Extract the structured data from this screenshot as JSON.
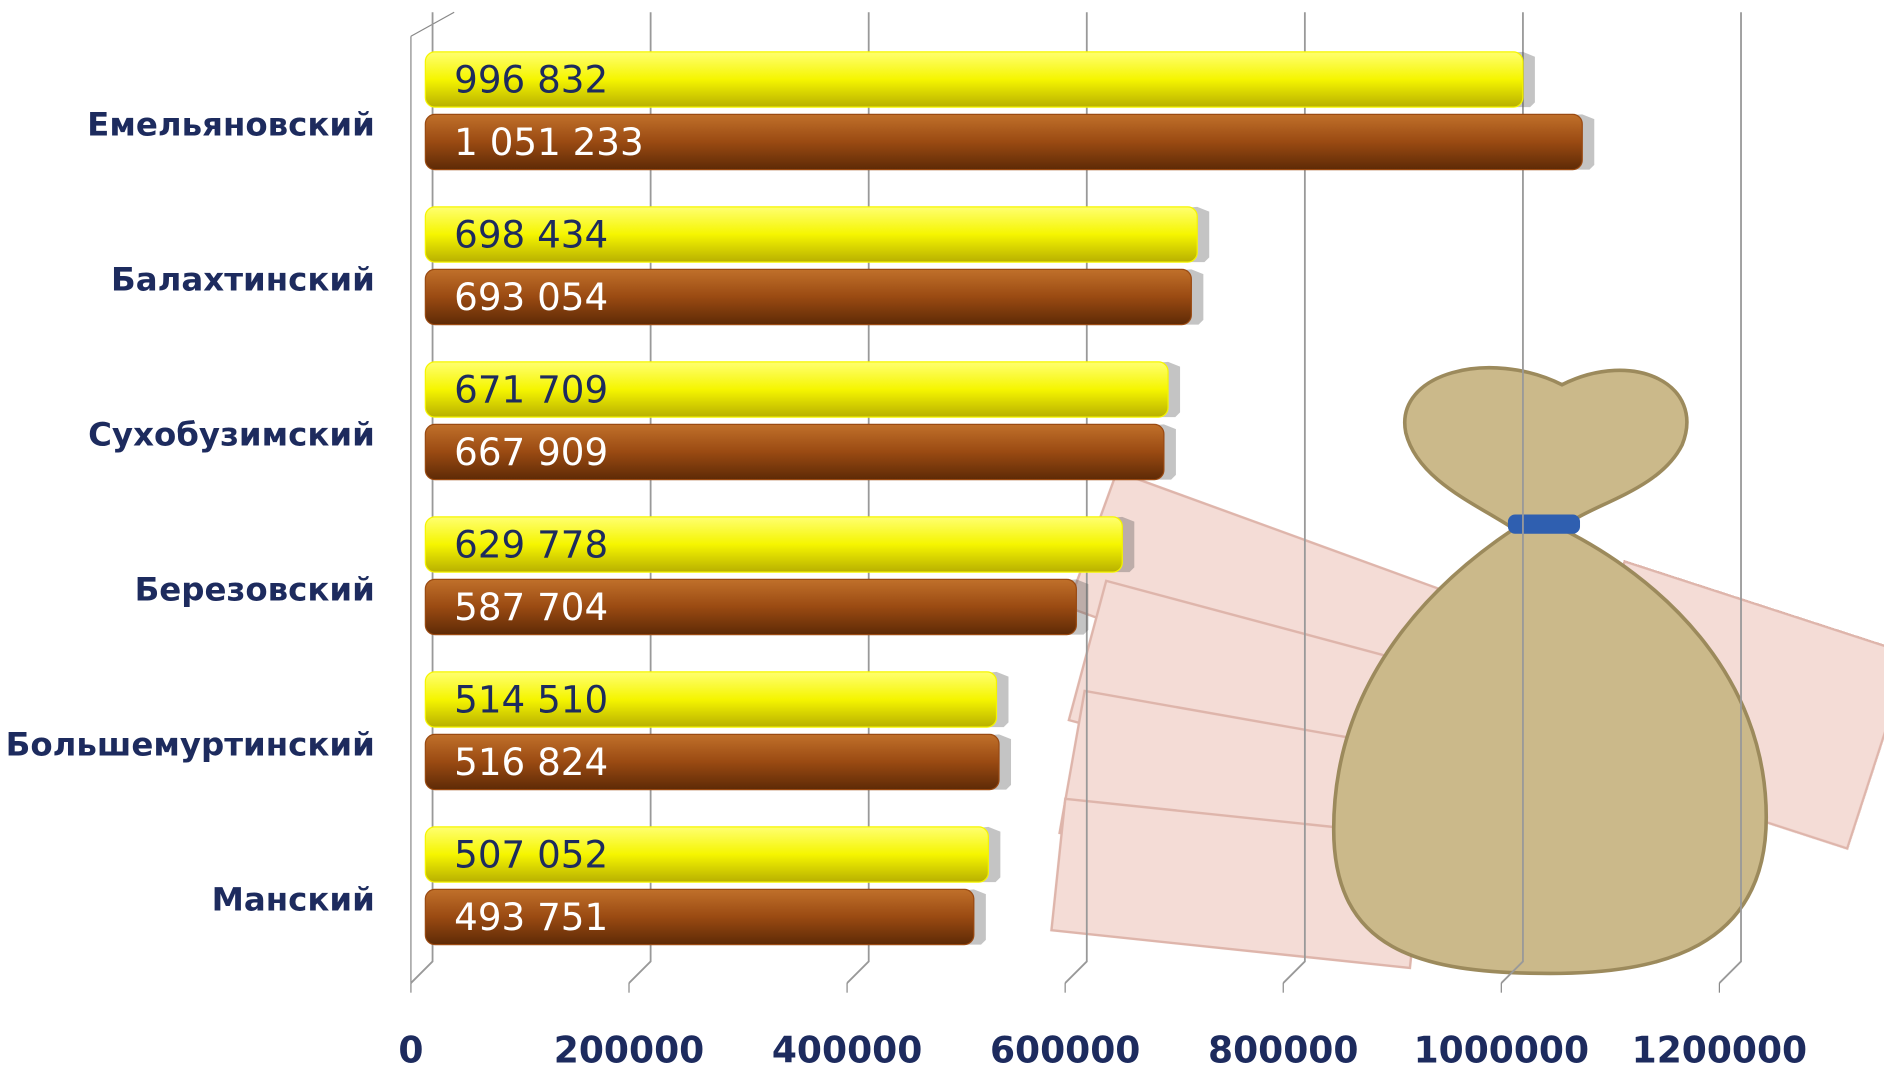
{
  "chart_data": {
    "type": "bar",
    "orientation": "horizontal",
    "categories": [
      "Емельяновский",
      "Балахтинский",
      "Сухобузимский",
      "Березовский",
      "Большемуртинский",
      "Манский"
    ],
    "series": [
      {
        "color": "#f5f500",
        "values": [
          996832,
          698434,
          671709,
          629778,
          514510,
          507052
        ],
        "value_labels": [
          "996 832",
          "698 434",
          "671 709",
          "629 778",
          "514 510",
          "507 052"
        ]
      },
      {
        "color": "#9a4a12",
        "values": [
          1051233,
          693054,
          667909,
          587704,
          516824,
          493751
        ],
        "value_labels": [
          "1 051 233",
          "693 054",
          "667 909",
          "587 704",
          "516 824",
          "493 751"
        ]
      }
    ],
    "xlim": [
      0,
      1200000
    ],
    "xticks": [
      0,
      200000,
      400000,
      600000,
      800000,
      1000000,
      1200000
    ],
    "grid": true
  }
}
